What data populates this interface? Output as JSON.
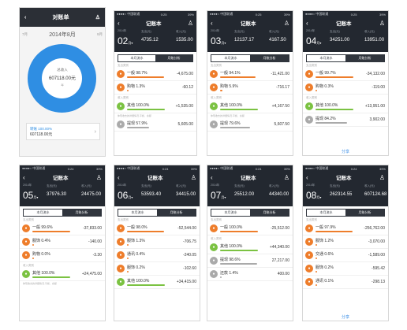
{
  "colors": {
    "expense": "#ee7d2b",
    "income": "#7bc242",
    "other": "#aaaaaa",
    "blue": "#2f8ee3"
  },
  "first": {
    "title": "对账单",
    "prev": "7月",
    "next": "9月",
    "period": "2014年8月",
    "center_label": "总收入",
    "center_value": "607118.00元",
    "center_hint": "每",
    "card_label": "转账 100.00%",
    "card_value": "607118.00元"
  },
  "phones": [
    {
      "status_left": "●●●●○ 中国联通",
      "time": "0:25",
      "status_right": "39%",
      "title": "记账本",
      "year": "2014年",
      "month": "02",
      "month_unit": "月▾",
      "expense_label": "支出(元)",
      "expense": "4735.12",
      "income_label": "收入(元)",
      "income": "1535.00",
      "tab1": "本月流水",
      "tab2": "月账分析",
      "section1": "支出类别",
      "rows": [
        {
          "name": "一般 98.7%",
          "amount": "-4,675.00",
          "kind": "expense",
          "pct": 0.987
        },
        {
          "name": "购物 1.3%",
          "amount": "-60.12",
          "kind": "expense",
          "pct": 0.013
        }
      ],
      "section2": "收入类别",
      "rows2": [
        {
          "name": "其他 100.0%",
          "amount": "+1,535.00",
          "kind": "income",
          "pct": 1.0
        }
      ],
      "note": "体现收支的详细情况,平衡、余额",
      "rows3": [
        {
          "name": "提现 57.9%",
          "amount": "5,605.00",
          "kind": "other",
          "pct": 0.579
        }
      ],
      "share": ""
    },
    {
      "status_left": "●●●●○ 中国联通",
      "time": "0:25",
      "status_right": "39%",
      "title": "记账本",
      "year": "2014年",
      "month": "03",
      "month_unit": "月▾",
      "expense_label": "支出(元)",
      "expense": "12137.17",
      "income_label": "收入(元)",
      "income": "4167.50",
      "tab1": "本月流水",
      "tab2": "月账分析",
      "section1": "支出类别",
      "rows": [
        {
          "name": "一般 94.1%",
          "amount": "-11,421.00",
          "kind": "expense",
          "pct": 0.941
        },
        {
          "name": "购物 5.9%",
          "amount": "-716.17",
          "kind": "expense",
          "pct": 0.059
        }
      ],
      "section2": "收入类别",
      "rows2": [
        {
          "name": "其他 100.0%",
          "amount": "+4,167.50",
          "kind": "income",
          "pct": 1.0
        }
      ],
      "note": "体现收支的详细情况,平衡、余额",
      "rows3": [
        {
          "name": "提现 79.6%",
          "amount": "5,607.50",
          "kind": "other",
          "pct": 0.796
        }
      ],
      "share": ""
    },
    {
      "status_left": "●●●●○ 中国联通",
      "time": "0:25",
      "status_right": "39%",
      "title": "记账本",
      "year": "2014年",
      "month": "04",
      "month_unit": "月▾",
      "expense_label": "支出(元)",
      "expense": "34251.00",
      "income_label": "收入(元)",
      "income": "13951.00",
      "tab1": "本月流水",
      "tab2": "月账分析",
      "section1": "支出类别",
      "rows": [
        {
          "name": "一般 99.7%",
          "amount": "-34,132.00",
          "kind": "expense",
          "pct": 0.997
        },
        {
          "name": "购物 0.3%",
          "amount": "-119.00",
          "kind": "expense",
          "pct": 0.003
        }
      ],
      "section2": "收入类别",
      "rows2": [
        {
          "name": "其他 100.0%",
          "amount": "+13,951.00",
          "kind": "income",
          "pct": 1.0
        }
      ],
      "note": "",
      "rows3": [
        {
          "name": "提现 84.2%",
          "amount": "3,902.00",
          "kind": "other",
          "pct": 0.842
        }
      ],
      "share": "分享"
    },
    {
      "status_left": "●●●●○ 中国联通",
      "time": "0:24",
      "status_right": "39%",
      "title": "记账本",
      "year": "2014年",
      "month": "05",
      "month_unit": "月▾",
      "expense_label": "支出(元)",
      "expense": "37976.30",
      "income_label": "收入(元)",
      "income": "24475.00",
      "tab1": "本月流水",
      "tab2": "月账分析",
      "section1": "支出类别",
      "rows": [
        {
          "name": "一般 99.6%",
          "amount": "-37,833.00",
          "kind": "expense",
          "pct": 0.996
        },
        {
          "name": "服饰 0.4%",
          "amount": "-140.00",
          "kind": "expense",
          "pct": 0.004
        },
        {
          "name": "购物 0.0%",
          "amount": "-3.30",
          "kind": "expense",
          "pct": 0.0
        }
      ],
      "section2": "收入类别",
      "rows2": [
        {
          "name": "其他 100.0%",
          "amount": "+24,475.00",
          "kind": "income",
          "pct": 1.0
        }
      ],
      "note": "体现收支的详细情况,平衡、余额",
      "rows3": [],
      "share": ""
    },
    {
      "status_left": "●●●●○ 中国联通",
      "time": "0:24",
      "status_right": "39%",
      "title": "记账本",
      "year": "2014年",
      "month": "06",
      "month_unit": "月▾",
      "expense_label": "支出(元)",
      "expense": "53593.40",
      "income_label": "收入(元)",
      "income": "34415.00",
      "tab1": "本月流水",
      "tab2": "月账分析",
      "section1": "支出类别",
      "rows": [
        {
          "name": "一般 98.0%",
          "amount": "-52,544.00",
          "kind": "expense",
          "pct": 0.98
        },
        {
          "name": "服饰 1.3%",
          "amount": "-706.75",
          "kind": "expense",
          "pct": 0.013
        },
        {
          "name": "通讯 0.4%",
          "amount": "-240.05",
          "kind": "expense",
          "pct": 0.004
        },
        {
          "name": "服饰 0.2%",
          "amount": "-102.60",
          "kind": "expense",
          "pct": 0.002
        }
      ],
      "section2": "",
      "rows2": [
        {
          "name": "其他 100.0%",
          "amount": "+34,415.00",
          "kind": "income",
          "pct": 1.0
        }
      ],
      "note": "",
      "rows3": [],
      "share": ""
    },
    {
      "status_left": "●●●●○ 中国联通",
      "time": "0:24",
      "status_right": "39%",
      "title": "记账本",
      "year": "2014年",
      "month": "07",
      "month_unit": "月▾",
      "expense_label": "支出(元)",
      "expense": "25512.00",
      "income_label": "收入(元)",
      "income": "44340.00",
      "tab1": "本月流水",
      "tab2": "月账分析",
      "section1": "支出类别",
      "rows": [
        {
          "name": "一般 100.0%",
          "amount": "-25,512.00",
          "kind": "expense",
          "pct": 1.0
        }
      ],
      "section2": "收入类别",
      "rows2": [
        {
          "name": "其他 100.0%",
          "amount": "+44,340.00",
          "kind": "income",
          "pct": 1.0
        }
      ],
      "note": "",
      "rows3": [
        {
          "name": "提现 98.6%",
          "amount": "27,217.00",
          "kind": "other",
          "pct": 0.986
        },
        {
          "name": "还款 1.4%",
          "amount": "400.00",
          "kind": "other",
          "pct": 0.014
        }
      ],
      "share": ""
    },
    {
      "status_left": "●●●●○ 中国联通",
      "time": "0:24",
      "status_right": "39%",
      "title": "记账本",
      "year": "2014年",
      "month": "08",
      "month_unit": "月▾",
      "expense_label": "支出(元)",
      "expense": "262314.55",
      "income_label": "收入(元)",
      "income": "607124.68",
      "tab1": "本月流水",
      "tab2": "月账分析",
      "section1": "支出类别",
      "rows": [
        {
          "name": "一般 97.9%",
          "amount": "-256,762.00",
          "kind": "expense",
          "pct": 0.979
        },
        {
          "name": "服饰 1.2%",
          "amount": "-3,070.00",
          "kind": "expense",
          "pct": 0.012
        },
        {
          "name": "交通 0.6%",
          "amount": "-1,589.00",
          "kind": "expense",
          "pct": 0.006
        },
        {
          "name": "服饰 0.2%",
          "amount": "-595.42",
          "kind": "expense",
          "pct": 0.002
        },
        {
          "name": "通讯 0.1%",
          "amount": "-298.13",
          "kind": "expense",
          "pct": 0.001
        }
      ],
      "section2": "",
      "rows2": [],
      "note": "",
      "rows3": [],
      "share": "分享"
    }
  ]
}
